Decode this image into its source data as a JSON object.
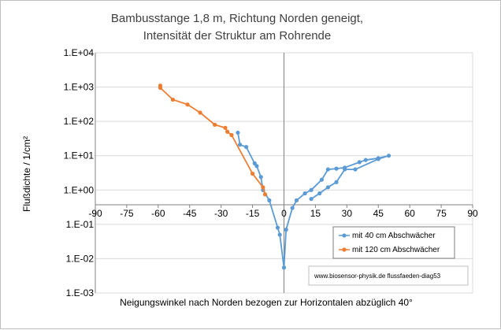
{
  "chart_data": {
    "type": "line",
    "title_lines": [
      "Bambusstange 1,8 m,  Richtung Norden geneigt,",
      "Intensität der Struktur am Rohrende"
    ],
    "xlabel": "Neigungswinkel nach Norden bezogen zur Horizontalen abzüglich 40°",
    "ylabel": "Flußdichte / 1/cm²",
    "xlim": [
      -90,
      90
    ],
    "x_ticks": [
      -90,
      -75,
      -60,
      -45,
      -30,
      -15,
      0,
      15,
      30,
      45,
      60,
      75,
      90
    ],
    "ylim": [
      0.001,
      10000
    ],
    "y_scale": "log",
    "y_tick_values": [
      10000,
      1000,
      100,
      10,
      1,
      0.1,
      0.01,
      0.001
    ],
    "y_tick_labels": [
      "1.E+04",
      "1.E+03",
      "1.E+02",
      "1.E+01",
      "1.E+00",
      "1.E-01",
      "1.E-02",
      "1.E-03"
    ],
    "grid": "horizontal major lines",
    "legend_position": "lower-right",
    "series": [
      {
        "name": "mit 40 cm Abschwächer",
        "color": "#5b9bd5",
        "x": [
          -22,
          -21,
          -18,
          -14,
          -13,
          -11,
          -10,
          -7,
          -3,
          -2,
          0,
          1,
          4,
          6,
          10,
          13,
          18,
          21,
          25,
          29,
          36,
          39,
          45,
          50,
          45,
          34,
          29,
          25,
          21,
          17,
          13
        ],
        "y": [
          47,
          21,
          18,
          6.0,
          5.0,
          2.4,
          1.0,
          0.5,
          0.08,
          0.05,
          0.0055,
          0.07,
          0.3,
          0.5,
          0.8,
          1.0,
          2.0,
          4.0,
          4.2,
          4.5,
          6.5,
          7.5,
          8.5,
          10,
          8.0,
          4.0,
          4.0,
          1.7,
          1.2,
          0.8,
          0.55
        ]
      },
      {
        "name": "mit 120 cm Abschwächer",
        "color": "#ed7d31",
        "x": [
          -59,
          -59,
          -53,
          -46,
          -40,
          -33,
          -28,
          -27,
          -25,
          -15,
          -10,
          -9
        ],
        "y": [
          1100,
          950,
          430,
          310,
          180,
          80,
          65,
          50,
          40,
          3.0,
          1.2,
          0.75
        ]
      }
    ],
    "credit": "www.biosensor-physik.de  flussfaeden-diag53"
  }
}
